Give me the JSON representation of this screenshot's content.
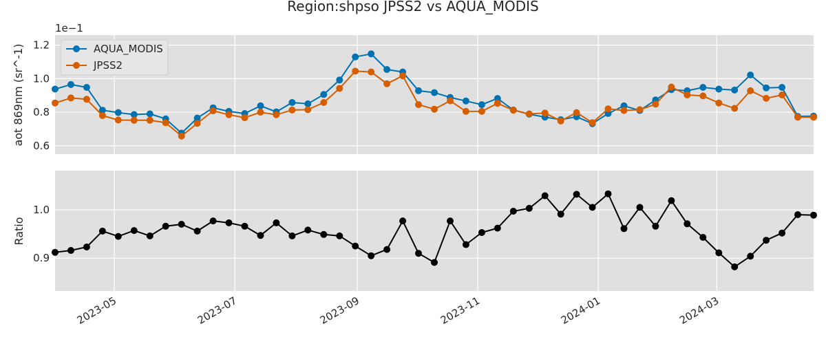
{
  "chart_data": {
    "type": "line",
    "title": "Region:shpso JPSS2 vs AQUA_MODIS",
    "x": [
      "2023-04-01",
      "2023-04-09",
      "2023-04-17",
      "2023-04-25",
      "2023-05-03",
      "2023-05-11",
      "2023-05-19",
      "2023-05-27",
      "2023-06-04",
      "2023-06-12",
      "2023-06-20",
      "2023-06-28",
      "2023-07-06",
      "2023-07-14",
      "2023-07-22",
      "2023-07-30",
      "2023-08-07",
      "2023-08-15",
      "2023-08-23",
      "2023-08-31",
      "2023-09-08",
      "2023-09-16",
      "2023-09-24",
      "2023-10-02",
      "2023-10-10",
      "2023-10-18",
      "2023-10-26",
      "2023-11-03",
      "2023-11-11",
      "2023-11-19",
      "2023-11-27",
      "2023-12-05",
      "2023-12-13",
      "2023-12-21",
      "2023-12-29",
      "2024-01-06",
      "2024-01-14",
      "2024-01-22",
      "2024-01-30",
      "2024-02-07",
      "2024-02-15",
      "2024-02-23",
      "2024-03-02",
      "2024-03-10",
      "2024-03-18",
      "2024-03-26",
      "2024-04-03",
      "2024-04-11",
      "2024-04-19"
    ],
    "xticks": [
      {
        "date": "2023-05-01",
        "label": "2023-05"
      },
      {
        "date": "2023-07-01",
        "label": "2023-07"
      },
      {
        "date": "2023-09-01",
        "label": "2023-09"
      },
      {
        "date": "2023-11-01",
        "label": "2023-11"
      },
      {
        "date": "2024-01-01",
        "label": "2024-01"
      },
      {
        "date": "2024-03-01",
        "label": "2024-03"
      }
    ],
    "xlim": [
      "2023-04-01",
      "2024-04-19"
    ],
    "top": {
      "ylabel": "aot 869nm (sr^-1)",
      "scale_label": "1e−1",
      "ylim": [
        0.055,
        0.126
      ],
      "yticks": [
        0.06,
        0.08,
        0.1,
        0.12
      ],
      "ytick_labels": [
        "0.6",
        "0.8",
        "1.0",
        "1.2"
      ],
      "legend_position": "upper-left",
      "series": [
        {
          "name": "AQUA_MODIS",
          "color": "#0072b2",
          "values": [
            0.0938,
            0.0965,
            0.0948,
            0.0812,
            0.0798,
            0.0786,
            0.079,
            0.076,
            0.0675,
            0.0765,
            0.0826,
            0.0805,
            0.0792,
            0.0838,
            0.0802,
            0.0858,
            0.085,
            0.0906,
            0.0992,
            0.113,
            0.1148,
            0.1055,
            0.104,
            0.0928,
            0.0917,
            0.0888,
            0.0867,
            0.0845,
            0.0882,
            0.0813,
            0.0788,
            0.0771,
            0.0755,
            0.0773,
            0.0732,
            0.0792,
            0.0838,
            0.081,
            0.0873,
            0.0935,
            0.0928,
            0.0948,
            0.0938,
            0.0932,
            0.1022,
            0.0945,
            0.0948,
            0.0775,
            0.0777
          ]
        },
        {
          "name": "JPSS2",
          "color": "#d55e00",
          "values": [
            0.0855,
            0.0885,
            0.0877,
            0.078,
            0.0753,
            0.0752,
            0.0752,
            0.0737,
            0.0658,
            0.0733,
            0.0808,
            0.0785,
            0.0767,
            0.08,
            0.0785,
            0.0813,
            0.0815,
            0.0858,
            0.0942,
            0.1045,
            0.104,
            0.097,
            0.1017,
            0.0845,
            0.0818,
            0.0868,
            0.0805,
            0.0805,
            0.0853,
            0.0812,
            0.079,
            0.0795,
            0.0748,
            0.0798,
            0.0738,
            0.082,
            0.081,
            0.0815,
            0.0848,
            0.095,
            0.0903,
            0.0897,
            0.0855,
            0.0823,
            0.0928,
            0.0883,
            0.0903,
            0.077,
            0.077
          ]
        }
      ]
    },
    "bottom": {
      "ylabel": "Ratio",
      "ylim": [
        0.832,
        1.081
      ],
      "yticks": [
        0.9,
        1.0
      ],
      "ytick_labels": [
        "0.9",
        "1.0"
      ],
      "series": [
        {
          "color": "#000000",
          "values": [
            0.912,
            0.916,
            0.923,
            0.956,
            0.945,
            0.957,
            0.946,
            0.966,
            0.97,
            0.956,
            0.977,
            0.973,
            0.966,
            0.947,
            0.973,
            0.946,
            0.958,
            0.949,
            0.946,
            0.925,
            0.905,
            0.918,
            0.977,
            0.91,
            0.891,
            0.977,
            0.928,
            0.953,
            0.962,
            0.997,
            1.003,
            1.029,
            0.991,
            1.032,
            1.005,
            1.033,
            0.961,
            1.005,
            0.966,
            1.019,
            0.971,
            0.943,
            0.911,
            0.882,
            0.904,
            0.937,
            0.952,
            0.99,
            0.989
          ]
        }
      ]
    },
    "grid": true
  }
}
